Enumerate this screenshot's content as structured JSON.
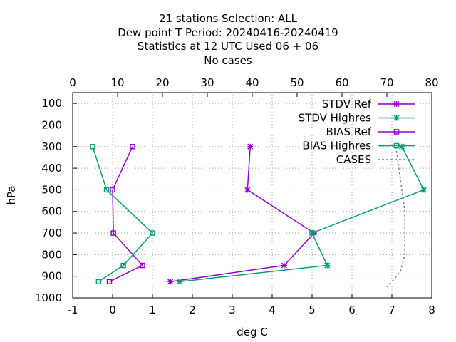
{
  "titles": [
    "21 stations Selection: ALL",
    "Dew point T  Period: 20240416-20240419",
    "Statistics at 12 UTC  Used  06 + 06",
    "No cases"
  ],
  "chart_data": {
    "type": "line",
    "xlabel": "deg C",
    "ylabel": "hPa",
    "xlim": [
      -1,
      8
    ],
    "x2lim": [
      0,
      80
    ],
    "ylim": [
      1000,
      50
    ],
    "xticks": [
      "-1",
      "0",
      "1",
      "2",
      "3",
      "4",
      "5",
      "6",
      "7",
      "8"
    ],
    "x2ticks": [
      "0",
      "10",
      "20",
      "30",
      "40",
      "50",
      "60",
      "70",
      "80"
    ],
    "yticks": [
      "100",
      "200",
      "300",
      "400",
      "500",
      "600",
      "700",
      "800",
      "900",
      "1000"
    ],
    "grid": true,
    "legend_position": "top-right",
    "series": [
      {
        "name": "STDV Ref",
        "color": "#9400d3",
        "marker": "x-star",
        "dash": false,
        "axis": "bottom",
        "x": [
          3.45,
          3.38,
          5.05,
          4.3,
          1.45
        ],
        "y": [
          300,
          500,
          700,
          850,
          925
        ]
      },
      {
        "name": "STDV Highres",
        "color": "#009e73",
        "marker": "x-star",
        "dash": false,
        "axis": "bottom",
        "x": [
          7.25,
          7.8,
          5.0,
          5.38,
          1.68
        ],
        "y": [
          300,
          500,
          700,
          850,
          925
        ]
      },
      {
        "name": "BIAS Ref",
        "color": "#9400d3",
        "marker": "square",
        "dash": false,
        "axis": "bottom",
        "x": [
          0.5,
          0.0,
          0.02,
          0.75,
          -0.08
        ],
        "y": [
          300,
          500,
          700,
          850,
          925
        ]
      },
      {
        "name": "BIAS Highres",
        "color": "#009e73",
        "marker": "square",
        "dash": false,
        "axis": "bottom",
        "x": [
          -0.5,
          -0.15,
          1.0,
          0.27,
          -0.35
        ],
        "y": [
          300,
          500,
          700,
          850,
          925
        ]
      },
      {
        "name": "CASES",
        "color": "#808080",
        "marker": "none",
        "dash": true,
        "axis": "top",
        "x": [
          72,
          73,
          74,
          74,
          74,
          73,
          70
        ],
        "y": [
          300,
          450,
          600,
          700,
          800,
          880,
          950
        ]
      }
    ]
  }
}
